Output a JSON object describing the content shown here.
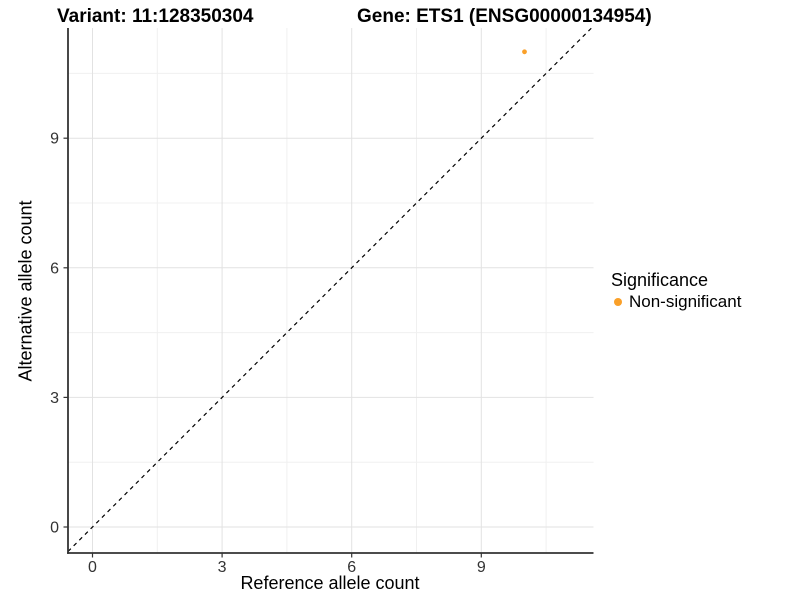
{
  "chart_data": {
    "type": "scatter",
    "title_left": "Variant: 11:128350304",
    "title_right": "Gene: ETS1 (ENSG00000134954)",
    "xlabel": "Reference allele count",
    "ylabel": "Alternative allele count",
    "points": [
      {
        "x": 10,
        "y": 11,
        "series": "Non-significant"
      }
    ],
    "point_color": "#FAA029",
    "point_radius_px": 2.4,
    "x_ticks": [
      0,
      3,
      6,
      9
    ],
    "y_ticks": [
      0,
      3,
      6,
      9
    ],
    "x_minor_ticks": [
      1.5,
      4.5,
      7.5,
      10.5
    ],
    "y_minor_ticks": [
      1.5,
      4.5,
      7.5,
      10.5
    ],
    "xlim": [
      -0.57,
      11.6
    ],
    "ylim": [
      -0.6,
      11.5
    ],
    "identity_line": {
      "slope": 1,
      "intercept": 0,
      "style": "dashed",
      "color": "#000000"
    },
    "grid": {
      "major_color": "#E2E2E2",
      "minor_color": "#F0F0F0",
      "background": "#FFFFFF"
    },
    "axis_color": "#333333",
    "tick_label_color": "#333333",
    "legend_position": "right",
    "legend": {
      "title": "Significance",
      "items": [
        {
          "label": "Non-significant",
          "color": "#FAA029"
        }
      ]
    }
  }
}
